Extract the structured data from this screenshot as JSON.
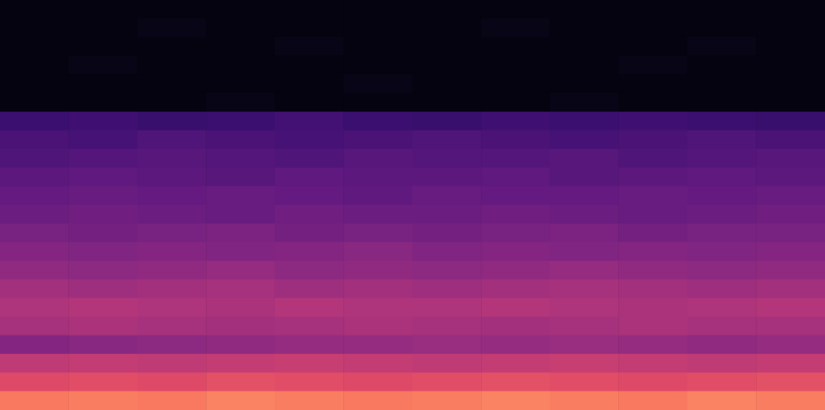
{
  "chart_data": {
    "type": "heatmap",
    "values": [
      [
        2,
        2,
        2,
        2,
        2,
        2,
        2,
        2,
        2,
        2,
        2,
        2
      ],
      [
        2,
        2,
        3,
        2,
        2,
        2,
        2,
        3,
        2,
        2,
        2,
        2
      ],
      [
        2,
        2,
        2,
        2,
        3,
        2,
        2,
        2,
        2,
        2,
        3,
        2
      ],
      [
        2,
        3,
        2,
        2,
        2,
        2,
        2,
        2,
        2,
        3,
        2,
        2
      ],
      [
        2,
        2,
        2,
        2,
        2,
        3,
        2,
        2,
        2,
        2,
        2,
        2
      ],
      [
        2,
        2,
        2,
        3,
        2,
        2,
        2,
        2,
        3,
        2,
        2,
        2
      ],
      [
        20,
        21,
        19,
        20,
        22,
        20,
        19,
        21,
        20,
        21,
        20,
        19
      ],
      [
        24,
        23,
        25,
        24,
        23,
        24,
        25,
        24,
        23,
        24,
        25,
        24
      ],
      [
        25,
        26,
        27,
        26,
        25,
        27,
        26,
        26,
        27,
        25,
        26,
        27
      ],
      [
        28,
        29,
        28,
        27,
        29,
        28,
        28,
        29,
        27,
        28,
        29,
        28
      ],
      [
        30,
        31,
        30,
        31,
        30,
        29,
        31,
        30,
        30,
        31,
        30,
        31
      ],
      [
        32,
        33,
        32,
        31,
        33,
        32,
        32,
        33,
        32,
        31,
        32,
        33
      ],
      [
        35,
        34,
        35,
        36,
        34,
        35,
        34,
        35,
        36,
        34,
        35,
        35
      ],
      [
        38,
        37,
        38,
        37,
        38,
        39,
        37,
        38,
        37,
        38,
        37,
        38
      ],
      [
        41,
        40,
        41,
        42,
        40,
        41,
        40,
        41,
        42,
        41,
        40,
        41
      ],
      [
        45,
        44,
        45,
        46,
        44,
        45,
        44,
        45,
        46,
        45,
        44,
        45
      ],
      [
        48,
        49,
        48,
        47,
        49,
        48,
        48,
        49,
        48,
        47,
        48,
        49
      ],
      [
        46,
        47,
        46,
        45,
        46,
        47,
        46,
        45,
        46,
        47,
        46,
        46
      ],
      [
        38,
        39,
        40,
        41,
        42,
        42,
        43,
        42,
        43,
        42,
        41,
        42
      ],
      [
        52,
        53,
        52,
        53,
        54,
        53,
        52,
        53,
        54,
        53,
        52,
        53
      ],
      [
        60,
        61,
        60,
        62,
        61,
        60,
        61,
        62,
        61,
        60,
        61,
        62
      ],
      [
        72,
        73,
        72,
        74,
        73,
        72,
        73,
        74,
        73,
        72,
        74,
        73
      ]
    ],
    "zlim": [
      0,
      100
    ],
    "tick_labels": false,
    "grid": false
  }
}
